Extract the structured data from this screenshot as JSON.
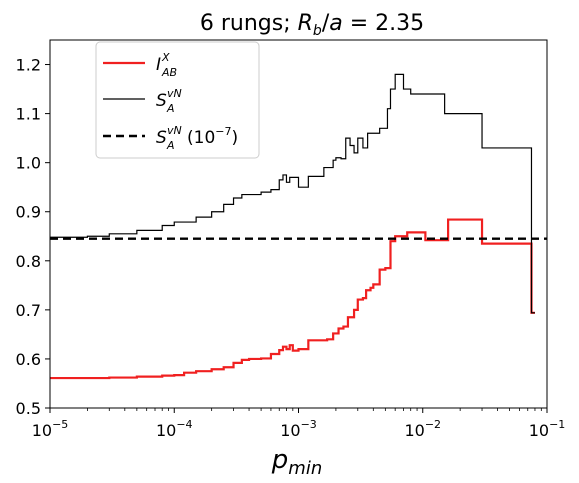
{
  "chart_data": {
    "type": "line",
    "title_parts": {
      "prefix": "6 rungs; ",
      "var": "R",
      "sub": "b",
      "mid": "/",
      "var2": "a",
      "suffix": " = 2.35"
    },
    "xlabel_parts": {
      "main": "p",
      "sub": "min"
    },
    "x_scale": "log",
    "xlim": [
      1e-05,
      0.1
    ],
    "ylim": [
      0.5,
      1.25
    ],
    "x_ticks": [
      {
        "value": 1e-05,
        "base": "10",
        "exp": "−5"
      },
      {
        "value": 0.0001,
        "base": "10",
        "exp": "−4"
      },
      {
        "value": 0.001,
        "base": "10",
        "exp": "−3"
      },
      {
        "value": 0.01,
        "base": "10",
        "exp": "−2"
      },
      {
        "value": 0.1,
        "base": "10",
        "exp": "−1"
      }
    ],
    "y_ticks": [
      "0.5",
      "0.6",
      "0.7",
      "0.8",
      "0.9",
      "1.0",
      "1.1",
      "1.2"
    ],
    "legend_position": "upper-left",
    "legend": [
      {
        "sym": "I",
        "sup": "X",
        "sub": "AB",
        "extra": ""
      },
      {
        "sym": "S",
        "sup": "vN",
        "sub": "A",
        "extra": ""
      },
      {
        "sym": "S",
        "sup": "vN",
        "sub": "A",
        "extra": "(10",
        "extra_sup": "−7",
        "extra_end": ")"
      }
    ],
    "series": [
      {
        "key": "mutual_info",
        "color": "#f02020",
        "width": 2.2,
        "dash": "",
        "step": true,
        "points": [
          [
            1e-05,
            0.561
          ],
          [
            2e-05,
            0.561
          ],
          [
            3e-05,
            0.562
          ],
          [
            5e-05,
            0.564
          ],
          [
            8e-05,
            0.566
          ],
          [
            0.0001,
            0.567
          ],
          [
            0.00012,
            0.572
          ],
          [
            0.00015,
            0.575
          ],
          [
            0.0002,
            0.579
          ],
          [
            0.00025,
            0.583
          ],
          [
            0.0003,
            0.592
          ],
          [
            0.00035,
            0.598
          ],
          [
            0.0004,
            0.6
          ],
          [
            0.0005,
            0.601
          ],
          [
            0.0006,
            0.61
          ],
          [
            0.0007,
            0.618
          ],
          [
            0.00075,
            0.625
          ],
          [
            0.0008,
            0.62
          ],
          [
            0.00085,
            0.628
          ],
          [
            0.0009,
            0.617
          ],
          [
            0.001,
            0.62
          ],
          [
            0.0012,
            0.638
          ],
          [
            0.0017,
            0.64
          ],
          [
            0.0019,
            0.652
          ],
          [
            0.0021,
            0.662
          ],
          [
            0.0023,
            0.666
          ],
          [
            0.0025,
            0.685
          ],
          [
            0.0028,
            0.7
          ],
          [
            0.003,
            0.721
          ],
          [
            0.0033,
            0.724
          ],
          [
            0.0035,
            0.74
          ],
          [
            0.0038,
            0.745
          ],
          [
            0.004,
            0.752
          ],
          [
            0.0045,
            0.782
          ],
          [
            0.005,
            0.785
          ],
          [
            0.0055,
            0.84
          ],
          [
            0.006,
            0.85
          ],
          [
            0.0075,
            0.858
          ],
          [
            0.0105,
            0.842
          ],
          [
            0.016,
            0.884
          ],
          [
            0.03,
            0.835
          ],
          [
            0.075,
            0.694
          ],
          [
            0.08,
            0.694
          ]
        ]
      },
      {
        "key": "entropy",
        "color": "#000000",
        "width": 1.2,
        "dash": "",
        "step": true,
        "points": [
          [
            1e-05,
            0.848
          ],
          [
            2e-05,
            0.85
          ],
          [
            3e-05,
            0.855
          ],
          [
            5e-05,
            0.862
          ],
          [
            8e-05,
            0.872
          ],
          [
            0.0001,
            0.879
          ],
          [
            0.00015,
            0.889
          ],
          [
            0.0002,
            0.9
          ],
          [
            0.00025,
            0.915
          ],
          [
            0.0003,
            0.928
          ],
          [
            0.00035,
            0.935
          ],
          [
            0.0005,
            0.94
          ],
          [
            0.0006,
            0.945
          ],
          [
            0.0007,
            0.965
          ],
          [
            0.00075,
            0.975
          ],
          [
            0.0008,
            0.96
          ],
          [
            0.00085,
            0.97
          ],
          [
            0.001,
            0.95
          ],
          [
            0.0012,
            0.972
          ],
          [
            0.0016,
            0.99
          ],
          [
            0.0019,
            1.005
          ],
          [
            0.002,
            1.01
          ],
          [
            0.0022,
            1.008
          ],
          [
            0.0024,
            1.05
          ],
          [
            0.0026,
            1.035
          ],
          [
            0.0028,
            1.02
          ],
          [
            0.003,
            1.05
          ],
          [
            0.0033,
            1.03
          ],
          [
            0.0036,
            1.06
          ],
          [
            0.0045,
            1.07
          ],
          [
            0.0052,
            1.11
          ],
          [
            0.0055,
            1.15
          ],
          [
            0.006,
            1.18
          ],
          [
            0.007,
            1.15
          ],
          [
            0.008,
            1.14
          ],
          [
            0.015,
            1.1
          ],
          [
            0.03,
            1.03
          ],
          [
            0.075,
            0.694
          ],
          [
            0.08,
            0.694
          ]
        ]
      },
      {
        "key": "entropy_1e-7",
        "color": "#000000",
        "width": 2.4,
        "dash": "8,5",
        "step": false,
        "points": [
          [
            1e-05,
            0.845
          ],
          [
            0.1,
            0.845
          ]
        ]
      }
    ]
  }
}
